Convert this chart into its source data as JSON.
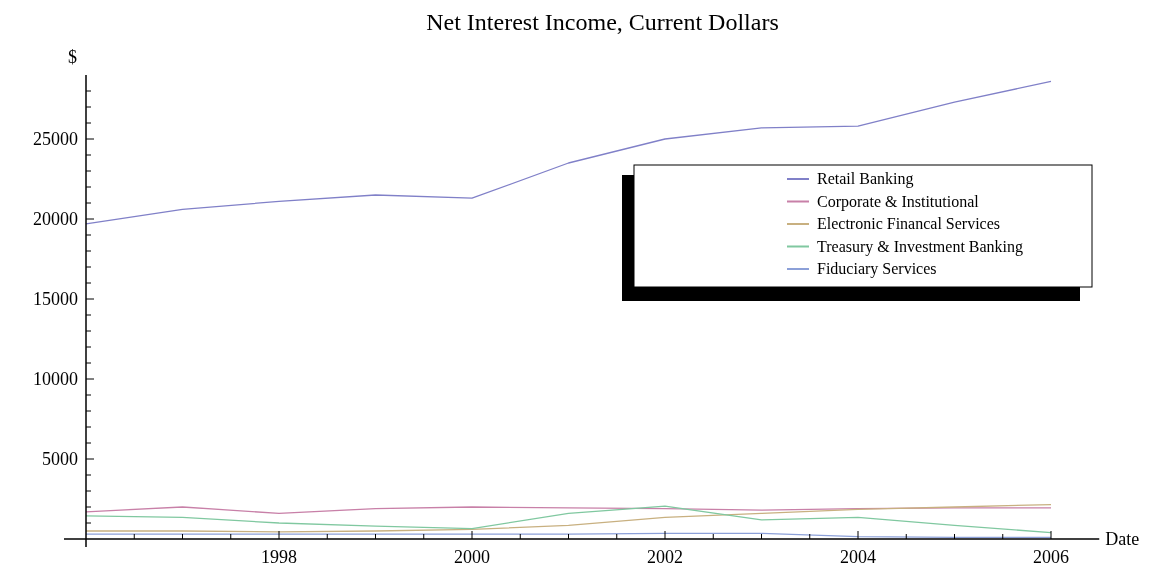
{
  "chart_data": {
    "type": "line",
    "title": "Net Interest Income, Current Dollars",
    "xlabel": "Date",
    "ylabel": "$",
    "x": [
      1996,
      1997,
      1998,
      1999,
      2000,
      2001,
      2002,
      2003,
      2004,
      2005,
      2006
    ],
    "series": [
      {
        "name": "Retail Banking",
        "color": "#8080c8",
        "values": [
          19700,
          20600,
          21100,
          21500,
          21300,
          23500,
          25000,
          25700,
          25800,
          27300,
          28600
        ]
      },
      {
        "name": "Corporate & Institutional",
        "color": "#c880a8",
        "values": [
          1700,
          2000,
          1600,
          1900,
          2000,
          1950,
          1900,
          1800,
          1900,
          1950,
          1950
        ]
      },
      {
        "name": "Electronic Financal Services",
        "color": "#c8b080",
        "values": [
          500,
          500,
          450,
          500,
          600,
          850,
          1350,
          1600,
          1850,
          2000,
          2150
        ]
      },
      {
        "name": "Treasury & Investment Banking",
        "color": "#80c8a0",
        "values": [
          1450,
          1350,
          1000,
          800,
          650,
          1600,
          2050,
          1200,
          1350,
          850,
          400
        ]
      },
      {
        "name": "Fiduciary Services",
        "color": "#8ca0d8",
        "values": [
          300,
          300,
          300,
          300,
          300,
          300,
          350,
          350,
          150,
          100,
          100
        ]
      }
    ],
    "xlim": [
      1996,
      2006.5
    ],
    "ylim": [
      0,
      29000
    ],
    "xticks": [
      {
        "value": 1996.5,
        "label": null
      },
      {
        "value": 1997,
        "label": null
      },
      {
        "value": 1997.5,
        "label": null
      },
      1998,
      {
        "value": 1998.5,
        "label": null
      },
      {
        "value": 1999,
        "label": null
      },
      {
        "value": 1999.5,
        "label": null
      },
      2000,
      {
        "value": 2000.5,
        "label": null
      },
      {
        "value": 2001,
        "label": null
      },
      {
        "value": 2001.5,
        "label": null
      },
      2002,
      {
        "value": 2002.5,
        "label": null
      },
      {
        "value": 2003,
        "label": null
      },
      {
        "value": 2003.5,
        "label": null
      },
      2004,
      {
        "value": 2004.5,
        "label": null
      },
      {
        "value": 2005,
        "label": null
      },
      {
        "value": 2005.5,
        "label": null
      },
      2006
    ],
    "yticks": [
      {
        "value": 1000,
        "label": null
      },
      {
        "value": 2000,
        "label": null
      },
      {
        "value": 3000,
        "label": null
      },
      {
        "value": 4000,
        "label": null
      },
      5000,
      {
        "value": 6000,
        "label": null
      },
      {
        "value": 7000,
        "label": null
      },
      {
        "value": 8000,
        "label": null
      },
      {
        "value": 9000,
        "label": null
      },
      10000,
      {
        "value": 11000,
        "label": null
      },
      {
        "value": 12000,
        "label": null
      },
      {
        "value": 13000,
        "label": null
      },
      {
        "value": 14000,
        "label": null
      },
      15000,
      {
        "value": 16000,
        "label": null
      },
      {
        "value": 17000,
        "label": null
      },
      {
        "value": 18000,
        "label": null
      },
      {
        "value": 19000,
        "label": null
      },
      20000,
      {
        "value": 21000,
        "label": null
      },
      {
        "value": 22000,
        "label": null
      },
      {
        "value": 23000,
        "label": null
      },
      {
        "value": 24000,
        "label": null
      },
      25000,
      {
        "value": 26000,
        "label": null
      },
      {
        "value": 27000,
        "label": null
      },
      {
        "value": 28000,
        "label": null
      }
    ],
    "legend": "right",
    "grid": false
  }
}
